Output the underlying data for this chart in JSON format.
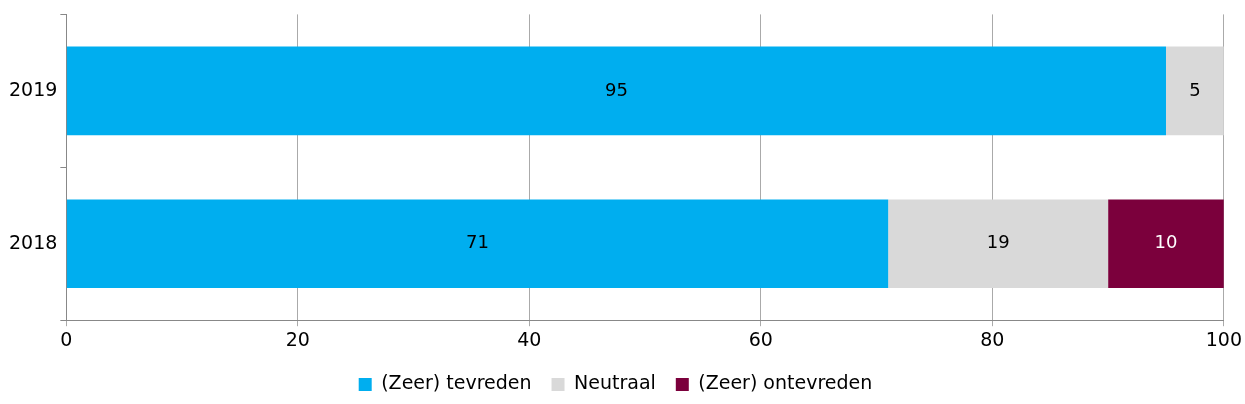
{
  "chart_data": {
    "type": "bar",
    "orientation": "horizontal",
    "stacked": true,
    "categories": [
      "2019",
      "2018"
    ],
    "series": [
      {
        "name": "(Zeer) tevreden",
        "color": "#00aeef",
        "values": [
          95,
          71
        ]
      },
      {
        "name": "Neutraal",
        "color": "#d9d9d9",
        "values": [
          5,
          19
        ]
      },
      {
        "name": "(Zeer) ontevreden",
        "color": "#7b003c",
        "values": [
          null,
          10
        ]
      }
    ],
    "xlim": [
      0,
      100
    ],
    "xticks": [
      0,
      20,
      40,
      60,
      80,
      100
    ],
    "grid": "x",
    "legend": "bottom",
    "data_labels": true
  }
}
